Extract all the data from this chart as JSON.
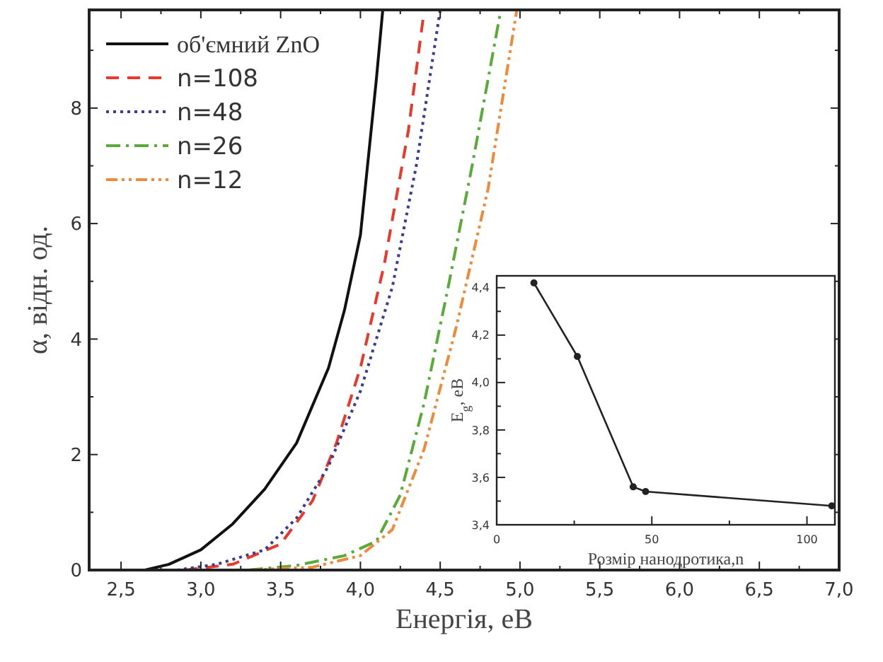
{
  "chart_data": [
    {
      "type": "line",
      "xlabel": "Енергія, еВ",
      "ylabel": "α, відн. од.",
      "xlim": [
        2.3,
        7.0
      ],
      "ylim": [
        0,
        9.7
      ],
      "xticks": [
        {
          "value": 2.5,
          "label": "2,5"
        },
        {
          "value": 2.75,
          "label": null
        },
        {
          "value": 3.0,
          "label": "3,0"
        },
        {
          "value": 3.25,
          "label": null
        },
        {
          "value": 3.5,
          "label": "3,5"
        },
        {
          "value": 3.75,
          "label": null
        },
        {
          "value": 4.0,
          "label": "4,0"
        },
        {
          "value": 4.25,
          "label": null
        },
        {
          "value": 4.5,
          "label": "4,5"
        },
        {
          "value": 4.75,
          "label": null
        },
        {
          "value": 5.0,
          "label": "5,0"
        },
        {
          "value": 5.25,
          "label": null
        },
        {
          "value": 5.5,
          "label": "5,5"
        },
        {
          "value": 5.75,
          "label": null
        },
        {
          "value": 6.0,
          "label": "6,0"
        },
        {
          "value": 6.25,
          "label": null
        },
        {
          "value": 6.5,
          "label": "6,5"
        },
        {
          "value": 6.75,
          "label": null
        },
        {
          "value": 7.0,
          "label": "7,0"
        }
      ],
      "yticks": [
        0,
        {
          "value": 1,
          "label": null
        },
        2,
        {
          "value": 3,
          "label": null
        },
        4,
        {
          "value": 5,
          "label": null
        },
        6,
        {
          "value": 7,
          "label": null
        },
        8,
        {
          "value": 9,
          "label": null
        }
      ],
      "legend": "top left",
      "grid": false,
      "marker": "none",
      "series": [
        {
          "name": "об'ємний ZnO",
          "color": "#111111",
          "line_style": "solid",
          "x": [
            2.65,
            2.8,
            3.0,
            3.2,
            3.4,
            3.6,
            3.8,
            3.9,
            4.0,
            4.1,
            4.14
          ],
          "values": [
            0,
            0.1,
            0.35,
            0.8,
            1.4,
            2.2,
            3.5,
            4.5,
            5.8,
            8.5,
            9.7
          ]
        },
        {
          "name": "n=108",
          "color": "#e8392a",
          "line_style": "dashed",
          "x": [
            2.9,
            3.2,
            3.5,
            3.7,
            3.85,
            4.0,
            4.15,
            4.3,
            4.4
          ],
          "values": [
            0,
            0.1,
            0.45,
            1.2,
            2.2,
            3.5,
            5.3,
            7.6,
            9.7
          ]
        },
        {
          "name": "n=48",
          "color": "#3a3a9a",
          "line_style": "dotted",
          "x": [
            2.85,
            3.1,
            3.4,
            3.6,
            3.8,
            4.0,
            4.2,
            4.35,
            4.5
          ],
          "values": [
            0,
            0.1,
            0.35,
            0.9,
            1.8,
            3.1,
            4.9,
            7.0,
            9.7
          ]
        },
        {
          "name": "n=26",
          "color": "#5aaa3a",
          "line_style": "dashdot",
          "x": [
            3.3,
            3.6,
            3.9,
            4.1,
            4.25,
            4.4,
            4.55,
            4.7,
            4.88
          ],
          "values": [
            0,
            0.08,
            0.25,
            0.5,
            1.3,
            2.9,
            4.9,
            7.0,
            9.7
          ]
        },
        {
          "name": "n=12",
          "color": "#f08a3a",
          "line_style": "dashdotdot",
          "x": [
            3.3,
            3.7,
            4.0,
            4.2,
            4.4,
            4.6,
            4.8,
            4.98
          ],
          "values": [
            0,
            0.05,
            0.25,
            0.7,
            2.1,
            4.2,
            6.6,
            9.7
          ]
        }
      ]
    },
    {
      "type": "line",
      "xlabel": "Розмір нанодротика,n",
      "ylabel": "E$_{g}$, еВ",
      "xlim": [
        0,
        109
      ],
      "ylim": [
        3.4,
        4.45
      ],
      "xticks": [
        0,
        {
          "value": 25,
          "label": null
        },
        50,
        {
          "value": 75,
          "label": null
        },
        100
      ],
      "yticks": [
        {
          "value": 3.4,
          "label": "3,4"
        },
        {
          "value": 3.5,
          "label": null
        },
        {
          "value": 3.6,
          "label": "3,6"
        },
        {
          "value": 3.7,
          "label": null
        },
        {
          "value": 3.8,
          "label": "3,8"
        },
        {
          "value": 3.9,
          "label": null
        },
        {
          "value": 4.0,
          "label": "4,0"
        },
        {
          "value": 4.1,
          "label": null
        },
        {
          "value": 4.2,
          "label": "4,2"
        },
        {
          "value": 4.3,
          "label": null
        },
        {
          "value": 4.4,
          "label": "4,4"
        }
      ],
      "grid": false,
      "marker": "circle",
      "series": [
        {
          "color": "#222222",
          "line_style": "solid",
          "x": [
            12,
            26,
            44,
            48,
            108
          ],
          "values": [
            4.42,
            4.11,
            3.56,
            3.54,
            3.48
          ]
        }
      ]
    }
  ]
}
